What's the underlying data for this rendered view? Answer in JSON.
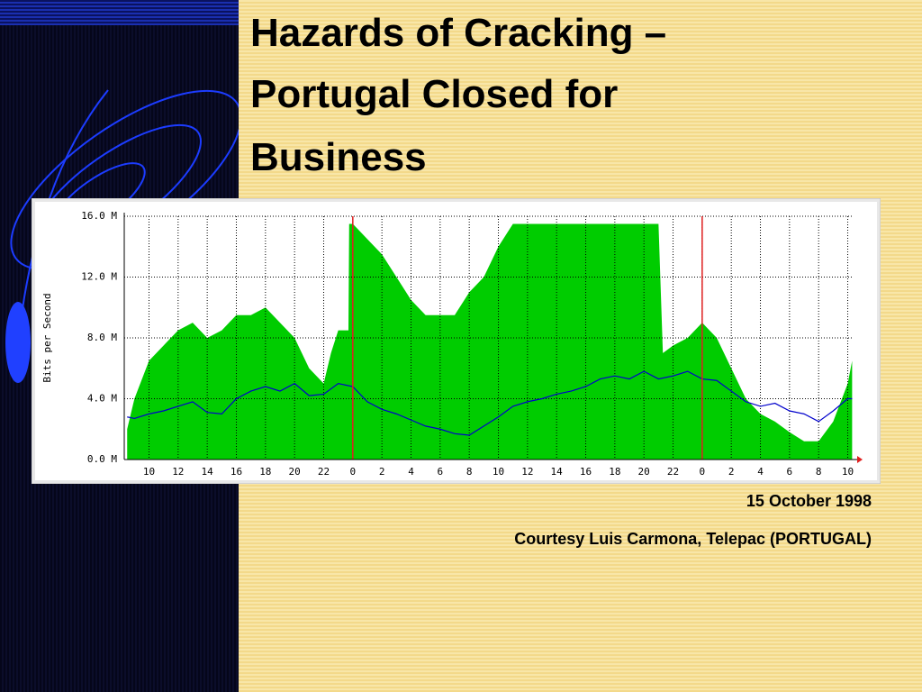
{
  "slide": {
    "title_lines": [
      "Hazards of Cracking –",
      "Portugal Closed for",
      "Business"
    ],
    "date": "15 October 1998",
    "credit": "Courtesy Luis Carmona, Telepac (PORTUGAL)"
  },
  "chart_data": {
    "type": "area-line",
    "ylabel": "Bits per Second",
    "xlim": [
      -1.7,
      48.4
    ],
    "ylim": [
      0,
      16
    ],
    "grid": true,
    "xticks": [
      {
        "value": 0,
        "label": "10"
      },
      {
        "value": 2,
        "label": "12"
      },
      {
        "value": 4,
        "label": "14"
      },
      {
        "value": 6,
        "label": "16"
      },
      {
        "value": 8,
        "label": "18"
      },
      {
        "value": 10,
        "label": "20"
      },
      {
        "value": 12,
        "label": "22"
      },
      {
        "value": 14,
        "label": "0"
      },
      {
        "value": 16,
        "label": "2"
      },
      {
        "value": 18,
        "label": "4"
      },
      {
        "value": 20,
        "label": "6"
      },
      {
        "value": 22,
        "label": "8"
      },
      {
        "value": 24,
        "label": "10"
      },
      {
        "value": 26,
        "label": "12"
      },
      {
        "value": 28,
        "label": "14"
      },
      {
        "value": 30,
        "label": "16"
      },
      {
        "value": 32,
        "label": "18"
      },
      {
        "value": 34,
        "label": "20"
      },
      {
        "value": 36,
        "label": "22"
      },
      {
        "value": 38,
        "label": "0"
      },
      {
        "value": 40,
        "label": "2"
      },
      {
        "value": 42,
        "label": "4"
      },
      {
        "value": 44,
        "label": "6"
      },
      {
        "value": 46,
        "label": "8"
      },
      {
        "value": 48,
        "label": "10"
      }
    ],
    "yticks": [
      {
        "value": 0,
        "label": "0.0 M"
      },
      {
        "value": 4,
        "label": "4.0 M"
      },
      {
        "value": 8,
        "label": "8.0 M"
      },
      {
        "value": 12,
        "label": "12.0 M"
      },
      {
        "value": 16,
        "label": "16.0 M"
      }
    ],
    "day_markers": [
      14,
      38
    ],
    "day_marker_color": "#e02020",
    "series": [
      {
        "kind": "area",
        "color": "#00cc00",
        "x": [
          -1.5,
          -1,
          0,
          1,
          2,
          3,
          4,
          5,
          6,
          7,
          8,
          9,
          10,
          11,
          12,
          12.5,
          13,
          13.7,
          13.75,
          14,
          15,
          16,
          17,
          18,
          19,
          20,
          21,
          22,
          23,
          24,
          25,
          26,
          35,
          35.3,
          36,
          37,
          38,
          39,
          40,
          41,
          42,
          43,
          44,
          45,
          46,
          47,
          48,
          48.3
        ],
        "values": [
          2,
          4,
          6.5,
          7.5,
          8.5,
          9,
          8,
          8.5,
          9.5,
          9.5,
          10,
          9,
          8,
          6,
          5,
          7,
          8.5,
          8.5,
          15.5,
          15.5,
          14.5,
          13.5,
          12,
          10.5,
          9.5,
          9.5,
          9.5,
          11,
          12,
          14,
          15.5,
          15.5,
          15.5,
          7,
          7.5,
          8,
          9,
          8,
          6,
          4,
          3,
          2.5,
          1.8,
          1.2,
          1.2,
          2.5,
          5,
          6.5
        ]
      },
      {
        "kind": "line",
        "color": "#0000cc",
        "x": [
          -1.5,
          -1,
          0,
          1,
          2,
          3,
          4,
          5,
          6,
          7,
          8,
          9,
          10,
          11,
          12,
          13,
          14,
          15,
          16,
          17,
          18,
          19,
          20,
          21,
          22,
          23,
          24,
          25,
          26,
          27,
          28,
          29,
          30,
          31,
          32,
          33,
          34,
          35,
          36,
          37,
          38,
          39,
          40,
          41,
          42,
          43,
          44,
          45,
          46,
          47,
          48,
          48.3
        ],
        "values": [
          2.8,
          2.7,
          3,
          3.2,
          3.5,
          3.8,
          3.1,
          3,
          4,
          4.5,
          4.8,
          4.5,
          5,
          4.2,
          4.3,
          5,
          4.8,
          3.8,
          3.3,
          3,
          2.6,
          2.2,
          2,
          1.7,
          1.6,
          2.2,
          2.8,
          3.5,
          3.8,
          4,
          4.3,
          4.5,
          4.8,
          5.3,
          5.5,
          5.3,
          5.8,
          5.3,
          5.5,
          5.8,
          5.3,
          5.2,
          4.5,
          3.8,
          3.5,
          3.7,
          3.2,
          3,
          2.5,
          3.2,
          4,
          4
        ]
      }
    ]
  }
}
